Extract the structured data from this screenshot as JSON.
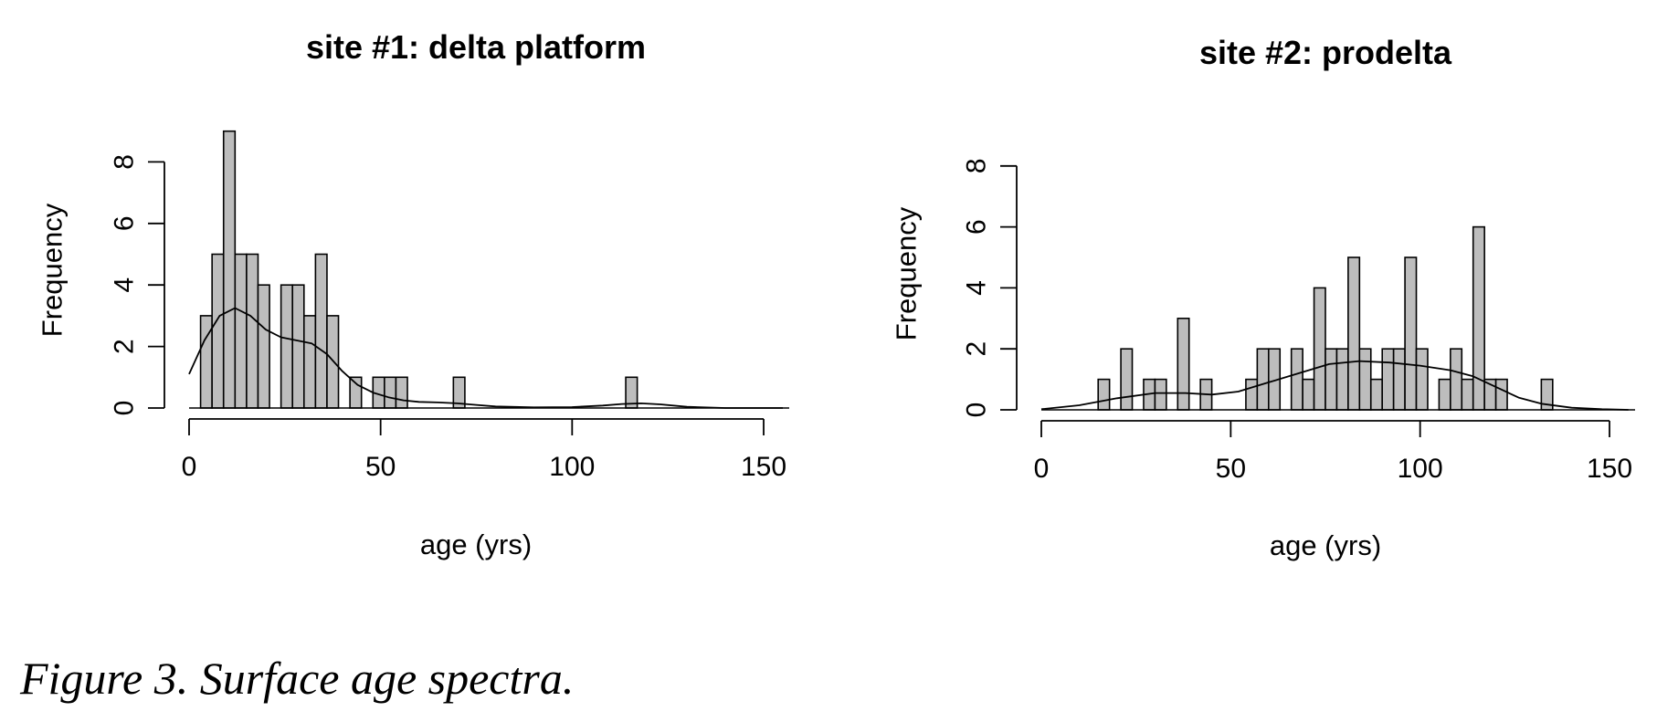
{
  "caption": "Figure 3. Surface age spectra.",
  "chart_data": [
    {
      "type": "bar",
      "title": "site #1: delta platform",
      "xlabel": "age (yrs)",
      "ylabel": "Frequency",
      "xlim": [
        0,
        155
      ],
      "ylim": [
        0,
        9
      ],
      "xticks": [
        0,
        50,
        100,
        150
      ],
      "yticks": [
        0,
        2,
        4,
        6,
        8
      ],
      "bin_width": 3,
      "bar_color": "#bdbdbd",
      "bins": [
        {
          "x0": 3,
          "count": 3
        },
        {
          "x0": 6,
          "count": 5
        },
        {
          "x0": 9,
          "count": 9
        },
        {
          "x0": 12,
          "count": 5
        },
        {
          "x0": 15,
          "count": 5
        },
        {
          "x0": 18,
          "count": 4
        },
        {
          "x0": 24,
          "count": 4
        },
        {
          "x0": 27,
          "count": 4
        },
        {
          "x0": 30,
          "count": 3
        },
        {
          "x0": 33,
          "count": 5
        },
        {
          "x0": 36,
          "count": 3
        },
        {
          "x0": 42,
          "count": 1
        },
        {
          "x0": 48,
          "count": 1
        },
        {
          "x0": 51,
          "count": 1
        },
        {
          "x0": 54,
          "count": 1
        },
        {
          "x0": 69,
          "count": 1
        },
        {
          "x0": 114,
          "count": 1
        }
      ],
      "density_curve": [
        [
          0,
          1.1
        ],
        [
          4,
          2.2
        ],
        [
          8,
          3.0
        ],
        [
          12,
          3.25
        ],
        [
          16,
          3.0
        ],
        [
          20,
          2.55
        ],
        [
          24,
          2.3
        ],
        [
          28,
          2.2
        ],
        [
          32,
          2.1
        ],
        [
          36,
          1.75
        ],
        [
          40,
          1.2
        ],
        [
          44,
          0.75
        ],
        [
          48,
          0.5
        ],
        [
          52,
          0.35
        ],
        [
          56,
          0.25
        ],
        [
          60,
          0.2
        ],
        [
          65,
          0.18
        ],
        [
          70,
          0.15
        ],
        [
          75,
          0.1
        ],
        [
          80,
          0.05
        ],
        [
          90,
          0.02
        ],
        [
          100,
          0.03
        ],
        [
          108,
          0.08
        ],
        [
          113,
          0.13
        ],
        [
          118,
          0.15
        ],
        [
          123,
          0.12
        ],
        [
          130,
          0.04
        ],
        [
          140,
          0.0
        ],
        [
          155,
          0.0
        ]
      ]
    },
    {
      "type": "bar",
      "title": "site #2: prodelta",
      "xlabel": "age (yrs)",
      "ylabel": "Frequency",
      "xlim": [
        0,
        155
      ],
      "ylim": [
        0,
        8
      ],
      "xticks": [
        0,
        50,
        100,
        150
      ],
      "yticks": [
        0,
        2,
        4,
        6,
        8
      ],
      "bin_width": 3,
      "bar_color": "#bdbdbd",
      "bins": [
        {
          "x0": 15,
          "count": 1
        },
        {
          "x0": 21,
          "count": 2
        },
        {
          "x0": 27,
          "count": 1
        },
        {
          "x0": 30,
          "count": 1
        },
        {
          "x0": 36,
          "count": 3
        },
        {
          "x0": 42,
          "count": 1
        },
        {
          "x0": 54,
          "count": 1
        },
        {
          "x0": 57,
          "count": 2
        },
        {
          "x0": 60,
          "count": 2
        },
        {
          "x0": 66,
          "count": 2
        },
        {
          "x0": 69,
          "count": 1
        },
        {
          "x0": 72,
          "count": 4
        },
        {
          "x0": 75,
          "count": 2
        },
        {
          "x0": 78,
          "count": 2
        },
        {
          "x0": 81,
          "count": 5
        },
        {
          "x0": 84,
          "count": 2
        },
        {
          "x0": 87,
          "count": 1
        },
        {
          "x0": 90,
          "count": 2
        },
        {
          "x0": 93,
          "count": 2
        },
        {
          "x0": 96,
          "count": 5
        },
        {
          "x0": 99,
          "count": 2
        },
        {
          "x0": 105,
          "count": 1
        },
        {
          "x0": 108,
          "count": 2
        },
        {
          "x0": 111,
          "count": 1
        },
        {
          "x0": 114,
          "count": 6
        },
        {
          "x0": 117,
          "count": 1
        },
        {
          "x0": 120,
          "count": 1
        },
        {
          "x0": 132,
          "count": 1
        }
      ],
      "density_curve": [
        [
          0,
          0.02
        ],
        [
          10,
          0.15
        ],
        [
          20,
          0.38
        ],
        [
          30,
          0.55
        ],
        [
          38,
          0.55
        ],
        [
          45,
          0.5
        ],
        [
          52,
          0.6
        ],
        [
          60,
          0.9
        ],
        [
          68,
          1.2
        ],
        [
          76,
          1.5
        ],
        [
          84,
          1.6
        ],
        [
          92,
          1.55
        ],
        [
          100,
          1.45
        ],
        [
          108,
          1.3
        ],
        [
          114,
          1.1
        ],
        [
          120,
          0.75
        ],
        [
          126,
          0.4
        ],
        [
          132,
          0.2
        ],
        [
          140,
          0.07
        ],
        [
          148,
          0.02
        ],
        [
          155,
          0.0
        ]
      ]
    }
  ]
}
